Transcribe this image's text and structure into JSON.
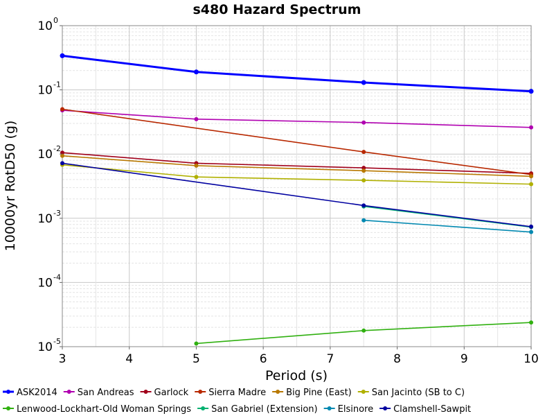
{
  "chart_data": {
    "type": "line",
    "title": "s480 Hazard Spectrum",
    "xlabel": "Period (s)",
    "ylabel": "10000yr RotD50 (g)",
    "xlim": [
      3,
      10
    ],
    "ylim": [
      1e-05,
      1
    ],
    "y_scale": "log",
    "grid": true,
    "legend_placement": "bottom",
    "x_ticks": [
      "3",
      "4",
      "5",
      "6",
      "7",
      "8",
      "9",
      "10"
    ],
    "y_ticks": [
      {
        "base": "10",
        "exp": "0"
      },
      {
        "base": "10",
        "exp": "-1"
      },
      {
        "base": "10",
        "exp": "-2"
      },
      {
        "base": "10",
        "exp": "-3"
      },
      {
        "base": "10",
        "exp": "-4"
      },
      {
        "base": "10",
        "exp": "-5"
      }
    ],
    "series": [
      {
        "name": "ASK2014",
        "color": "#0000ff",
        "bold": true,
        "x": [
          3,
          5,
          7.5,
          10
        ],
        "y": [
          0.34,
          0.19,
          0.13,
          0.095
        ]
      },
      {
        "name": "San Andreas",
        "color": "#b000b0",
        "x": [
          3,
          5,
          7.5,
          10
        ],
        "y": [
          0.048,
          0.035,
          0.031,
          0.026
        ]
      },
      {
        "name": "Garlock",
        "color": "#a0001a",
        "x": [
          3,
          5,
          7.5,
          10
        ],
        "y": [
          0.0105,
          0.0072,
          0.0061,
          0.005
        ]
      },
      {
        "name": "Sierra Madre",
        "color": "#b82800",
        "x": [
          3,
          7.5,
          10
        ],
        "y": [
          0.05,
          0.0108,
          0.0048
        ]
      },
      {
        "name": "Big Pine (East)",
        "color": "#b87800",
        "x": [
          3,
          5,
          7.5,
          10
        ],
        "y": [
          0.0094,
          0.0066,
          0.0055,
          0.0045
        ]
      },
      {
        "name": "San Jacinto (SB to C)",
        "color": "#b0b000",
        "x": [
          3,
          5,
          7.5,
          10
        ],
        "y": [
          0.0068,
          0.0044,
          0.0039,
          0.0034
        ]
      },
      {
        "name": "Lenwood-Lockhart-Old Woman Springs",
        "color": "#30b010",
        "x": [
          5,
          7.5,
          10
        ],
        "y": [
          1.12e-05,
          1.78e-05,
          2.38e-05
        ]
      },
      {
        "name": "San Gabriel (Extension)",
        "color": "#00b070",
        "x": [
          7.5,
          10
        ],
        "y": [
          0.00153,
          0.00073
        ]
      },
      {
        "name": "Elsinore",
        "color": "#0088b0",
        "x": [
          7.5,
          10
        ],
        "y": [
          0.00093,
          0.00061
        ]
      },
      {
        "name": "Clamshell-Sawpit",
        "color": "#0000a0",
        "x": [
          3,
          7.5,
          10
        ],
        "y": [
          0.0072,
          0.00158,
          0.00074
        ]
      }
    ]
  }
}
